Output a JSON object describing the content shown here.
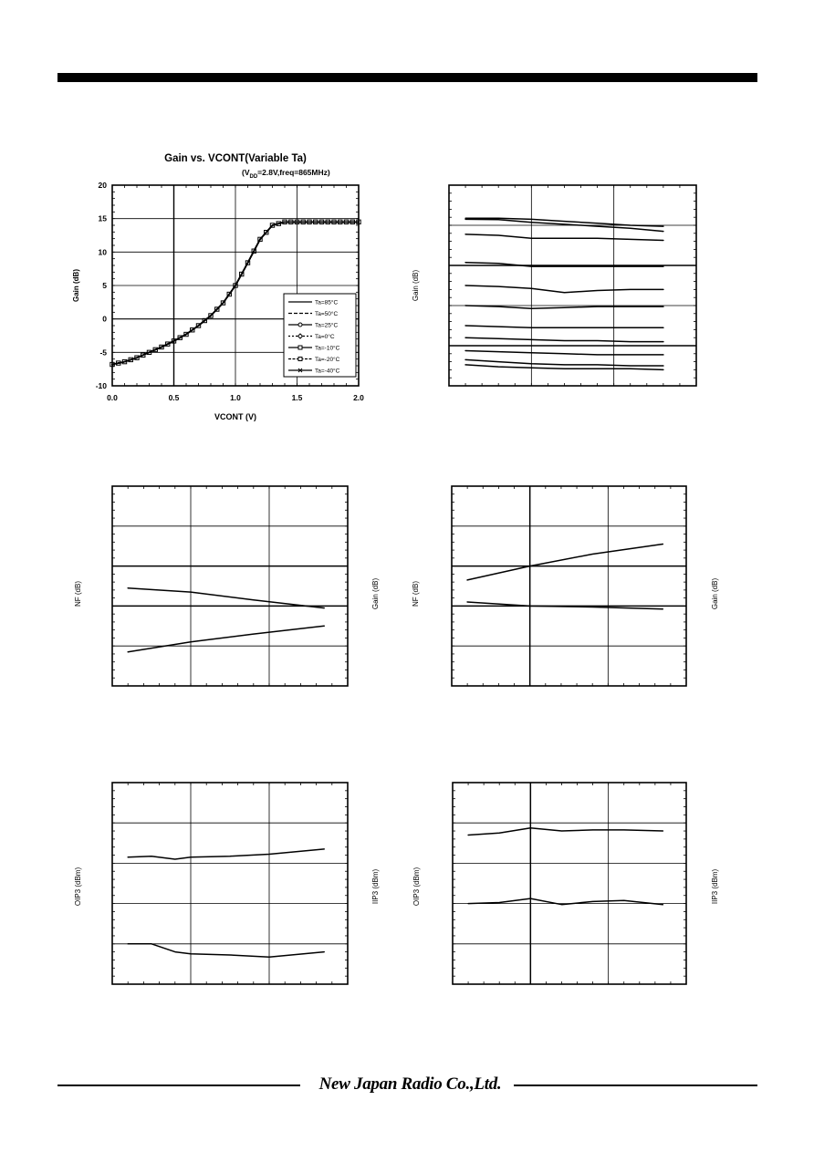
{
  "footer": {
    "brand": "New Japan Radio Co.,Ltd."
  },
  "chart_data": [
    {
      "type": "line",
      "title": "Gain vs. VCONT(Variable Ta)",
      "subtitle_prefix": "(V",
      "subtitle_sub": "DD",
      "subtitle_suffix": "=2.8V,freq=865MHz)",
      "xlabel": "VCONT (V)",
      "ylabel": "Gain (dB)",
      "xlim": [
        0,
        2
      ],
      "ylim": [
        -10,
        20
      ],
      "xticks": [
        "0.0",
        "0.5",
        "1.0",
        "1.5",
        "2.0"
      ],
      "yticks": [
        "-10",
        "-5",
        "0",
        "5",
        "10",
        "15",
        "20"
      ],
      "legend_position": "bottom-right",
      "x": [
        0.0,
        0.1,
        0.2,
        0.3,
        0.4,
        0.5,
        0.6,
        0.7,
        0.8,
        0.9,
        1.0,
        1.1,
        1.2,
        1.3,
        1.4,
        1.5,
        1.6,
        1.7,
        1.8,
        1.9,
        2.0
      ],
      "series": [
        {
          "name": "Ta=85°C",
          "values": [
            -6.8,
            -6.4,
            -5.8,
            -5.0,
            -4.2,
            -3.3,
            -2.3,
            -1.0,
            0.5,
            2.4,
            5.0,
            8.4,
            11.9,
            14.0,
            14.5,
            14.5,
            14.5,
            14.5,
            14.5,
            14.5,
            14.5
          ]
        },
        {
          "name": "Ta=50°C",
          "values": [
            -6.8,
            -6.4,
            -5.8,
            -5.0,
            -4.2,
            -3.3,
            -2.3,
            -1.0,
            0.5,
            2.4,
            5.0,
            8.4,
            11.9,
            14.0,
            14.5,
            14.5,
            14.5,
            14.5,
            14.5,
            14.5,
            14.5
          ]
        },
        {
          "name": "Ta=25°C",
          "values": [
            -6.8,
            -6.4,
            -5.8,
            -5.0,
            -4.2,
            -3.3,
            -2.3,
            -1.0,
            0.5,
            2.4,
            5.0,
            8.4,
            11.9,
            14.0,
            14.5,
            14.5,
            14.5,
            14.5,
            14.5,
            14.5,
            14.5
          ]
        },
        {
          "name": "Ta=0°C",
          "values": [
            -6.8,
            -6.4,
            -5.8,
            -5.0,
            -4.2,
            -3.3,
            -2.3,
            -1.0,
            0.5,
            2.4,
            5.0,
            8.4,
            11.9,
            14.0,
            14.5,
            14.5,
            14.5,
            14.5,
            14.5,
            14.5,
            14.5
          ]
        },
        {
          "name": "Ta=-10°C",
          "values": [
            -6.8,
            -6.4,
            -5.8,
            -5.0,
            -4.2,
            -3.3,
            -2.3,
            -1.0,
            0.5,
            2.4,
            5.0,
            8.4,
            11.9,
            14.0,
            14.5,
            14.5,
            14.5,
            14.5,
            14.5,
            14.5,
            14.5
          ]
        },
        {
          "name": "Ta=-20°C",
          "values": [
            -6.8,
            -6.4,
            -5.8,
            -5.0,
            -4.2,
            -3.3,
            -2.3,
            -1.0,
            0.5,
            2.4,
            5.0,
            8.4,
            11.9,
            14.0,
            14.5,
            14.5,
            14.5,
            14.5,
            14.5,
            14.5,
            14.5
          ]
        },
        {
          "name": "Ta=-40°C",
          "values": [
            -6.8,
            -6.4,
            -5.8,
            -5.0,
            -4.2,
            -3.3,
            -2.3,
            -1.0,
            0.5,
            2.4,
            5.0,
            8.4,
            11.9,
            14.0,
            14.5,
            14.5,
            14.5,
            14.5,
            14.5,
            14.5,
            14.5
          ]
        }
      ]
    },
    {
      "type": "line",
      "ylabel": "Gain (dB)",
      "xlim": [
        0,
        3
      ],
      "ylim": [
        0,
        10
      ],
      "x": [
        0.2,
        0.6,
        1.0,
        1.4,
        1.8,
        2.2,
        2.6
      ],
      "series": [
        {
          "values": [
            8.35,
            8.35,
            8.3,
            8.2,
            8.1,
            8.0,
            7.95
          ]
        },
        {
          "values": [
            8.3,
            8.28,
            8.15,
            8.05,
            7.95,
            7.85,
            7.7
          ]
        },
        {
          "values": [
            7.55,
            7.5,
            7.35,
            7.35,
            7.35,
            7.3,
            7.25
          ]
        },
        {
          "values": [
            6.15,
            6.1,
            5.95,
            5.95,
            5.95,
            5.95,
            5.95
          ]
        },
        {
          "values": [
            5.0,
            4.95,
            4.85,
            4.65,
            4.75,
            4.8,
            4.8
          ]
        },
        {
          "values": [
            4.0,
            3.95,
            3.85,
            3.9,
            3.95,
            3.95,
            3.95
          ]
        },
        {
          "values": [
            3.0,
            2.95,
            2.9,
            2.9,
            2.9,
            2.9,
            2.9
          ]
        },
        {
          "values": [
            2.4,
            2.35,
            2.3,
            2.25,
            2.25,
            2.2,
            2.2
          ]
        },
        {
          "values": [
            1.75,
            1.7,
            1.65,
            1.6,
            1.55,
            1.55,
            1.55
          ]
        },
        {
          "values": [
            1.3,
            1.2,
            1.1,
            1.05,
            1.05,
            1.0,
            1.0
          ]
        },
        {
          "values": [
            1.05,
            0.95,
            0.9,
            0.85,
            0.85,
            0.85,
            0.8
          ]
        }
      ]
    },
    {
      "type": "line",
      "ylabel": "NF (dB)",
      "y2label": "Gain (dB)",
      "xlim": [
        0,
        3
      ],
      "ylim": [
        0,
        10
      ],
      "x": [
        0.2,
        1.0,
        1.8,
        2.7
      ],
      "series": [
        {
          "values": [
            4.9,
            4.7,
            4.3,
            3.9
          ]
        },
        {
          "values": [
            1.7,
            2.2,
            2.6,
            3.0
          ]
        }
      ]
    },
    {
      "type": "line",
      "ylabel": "NF (dB)",
      "y2label": "Gain (dB)",
      "xlim": [
        0,
        3
      ],
      "ylim": [
        0,
        10
      ],
      "x": [
        0.2,
        1.0,
        1.8,
        2.7
      ],
      "series": [
        {
          "values": [
            5.3,
            6.0,
            6.6,
            7.1
          ]
        },
        {
          "values": [
            4.2,
            4.0,
            3.95,
            3.85
          ]
        }
      ]
    },
    {
      "type": "line",
      "ylabel": "OIP3 (dBm)",
      "y2label": "IIP3 (dBm)",
      "xlim": [
        0,
        3
      ],
      "ylim": [
        0,
        10
      ],
      "x": [
        0.2,
        0.5,
        0.8,
        1.0,
        1.5,
        2.0,
        2.7
      ],
      "series": [
        {
          "values": [
            6.3,
            6.35,
            6.2,
            6.3,
            6.35,
            6.45,
            6.7
          ]
        },
        {
          "values": [
            2.0,
            2.0,
            1.6,
            1.5,
            1.45,
            1.35,
            1.6
          ]
        }
      ]
    },
    {
      "type": "line",
      "ylabel": "OIP3 (dBm)",
      "y2label": "IIP3 (dBm)",
      "xlim": [
        0,
        3
      ],
      "ylim": [
        0,
        10
      ],
      "x": [
        0.2,
        0.6,
        1.0,
        1.4,
        1.8,
        2.2,
        2.7
      ],
      "series": [
        {
          "values": [
            7.4,
            7.5,
            7.75,
            7.6,
            7.65,
            7.65,
            7.6
          ]
        },
        {
          "values": [
            4.0,
            4.05,
            4.25,
            3.95,
            4.1,
            4.15,
            3.95
          ]
        }
      ]
    }
  ]
}
